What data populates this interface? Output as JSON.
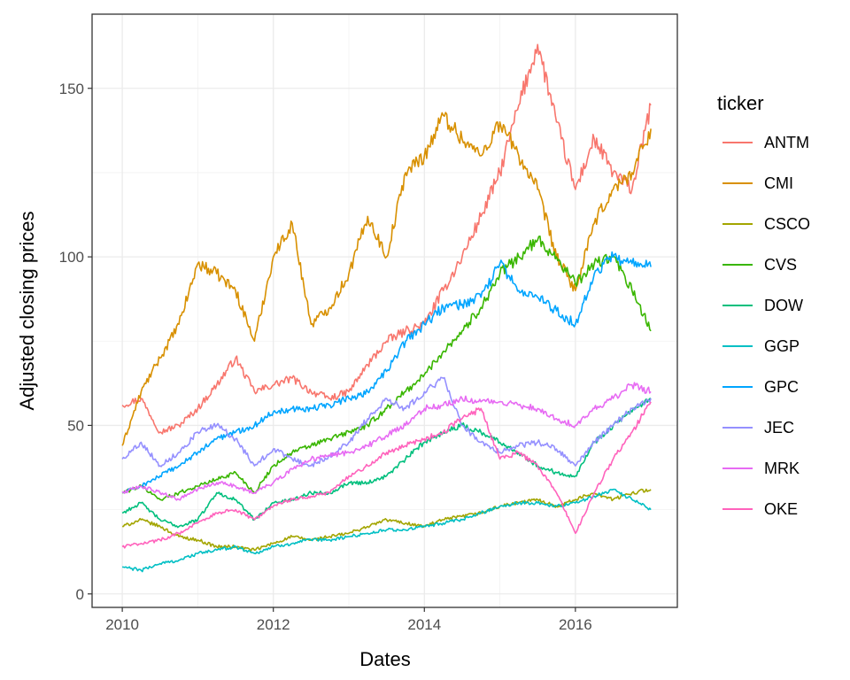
{
  "chart_data": {
    "type": "line",
    "xlabel": "Dates",
    "ylabel": "Adjusted closing prices",
    "xlim": [
      2009.6,
      2017.35
    ],
    "ylim": [
      -4,
      172
    ],
    "x_ticks": [
      2010,
      2012,
      2014,
      2016
    ],
    "x_tick_labels": [
      "2010",
      "2012",
      "2014",
      "2016"
    ],
    "y_ticks": [
      0,
      50,
      100,
      150
    ],
    "y_tick_labels": [
      "0",
      "50",
      "100",
      "150"
    ],
    "grid": true,
    "legend": {
      "title": "ticker",
      "placement": "right"
    },
    "x": [
      2010,
      2010.25,
      2010.5,
      2010.75,
      2011,
      2011.25,
      2011.5,
      2011.75,
      2012,
      2012.25,
      2012.5,
      2012.75,
      2013,
      2013.25,
      2013.5,
      2013.75,
      2014,
      2014.25,
      2014.5,
      2014.75,
      2015,
      2015.25,
      2015.5,
      2015.75,
      2016,
      2016.25,
      2016.5,
      2016.75,
      2017
    ],
    "series": [
      {
        "name": "ANTM",
        "color": "#F8766D",
        "values": [
          56,
          58,
          48,
          50,
          55,
          62,
          70,
          60,
          62,
          64,
          60,
          58,
          60,
          68,
          75,
          78,
          80,
          90,
          100,
          112,
          125,
          145,
          163,
          140,
          120,
          135,
          125,
          120,
          145
        ]
      },
      {
        "name": "CMI",
        "color": "#D89000",
        "values": [
          44,
          60,
          70,
          80,
          98,
          95,
          90,
          75,
          100,
          110,
          80,
          85,
          95,
          112,
          100,
          125,
          130,
          142,
          135,
          130,
          140,
          130,
          120,
          100,
          90,
          110,
          120,
          125,
          138
        ]
      },
      {
        "name": "CSCO",
        "color": "#A3A500",
        "values": [
          20,
          22,
          20,
          17,
          16,
          14,
          14,
          13,
          15,
          17,
          16,
          17,
          18,
          20,
          22,
          21,
          20,
          22,
          23,
          24,
          26,
          27,
          28,
          26,
          28,
          30,
          28,
          30,
          31
        ]
      },
      {
        "name": "CVS",
        "color": "#39B600",
        "values": [
          30,
          32,
          28,
          30,
          32,
          34,
          36,
          30,
          38,
          42,
          44,
          46,
          48,
          50,
          55,
          60,
          65,
          72,
          78,
          85,
          95,
          100,
          105,
          100,
          92,
          98,
          100,
          90,
          78
        ]
      },
      {
        "name": "DOW",
        "color": "#00BF7D",
        "values": [
          24,
          27,
          22,
          20,
          22,
          30,
          28,
          22,
          27,
          28,
          30,
          30,
          33,
          33,
          35,
          40,
          45,
          48,
          50,
          48,
          45,
          42,
          38,
          36,
          35,
          45,
          50,
          54,
          58
        ]
      },
      {
        "name": "GGP",
        "color": "#00BFC4",
        "values": [
          8,
          7,
          9,
          10,
          12,
          13,
          14,
          12,
          14,
          15,
          16,
          16,
          17,
          18,
          19,
          19,
          20,
          21,
          22,
          24,
          26,
          27,
          27,
          26,
          27,
          29,
          31,
          28,
          25
        ]
      },
      {
        "name": "GPC",
        "color": "#00A5FF",
        "values": [
          30,
          32,
          35,
          38,
          42,
          46,
          48,
          50,
          54,
          55,
          55,
          56,
          58,
          60,
          66,
          75,
          80,
          85,
          86,
          88,
          98,
          90,
          88,
          84,
          80,
          95,
          100,
          98,
          97
        ]
      },
      {
        "name": "JEC",
        "color": "#9590FF",
        "values": [
          40,
          45,
          38,
          42,
          48,
          50,
          46,
          38,
          43,
          40,
          38,
          41,
          45,
          52,
          58,
          55,
          60,
          64,
          50,
          45,
          42,
          44,
          45,
          43,
          38,
          45,
          50,
          55,
          58
        ]
      },
      {
        "name": "MRK",
        "color": "#E76BF3",
        "values": [
          30,
          32,
          30,
          28,
          31,
          33,
          32,
          30,
          33,
          37,
          40,
          41,
          42,
          44,
          47,
          50,
          55,
          56,
          58,
          57,
          57,
          56,
          55,
          52,
          50,
          55,
          58,
          62,
          60
        ]
      },
      {
        "name": "OKE",
        "color": "#FF62BC",
        "values": [
          14,
          15,
          16,
          18,
          21,
          24,
          25,
          22,
          26,
          28,
          29,
          30,
          35,
          38,
          42,
          44,
          46,
          48,
          52,
          55,
          40,
          42,
          38,
          30,
          18,
          30,
          40,
          48,
          57
        ]
      }
    ]
  }
}
